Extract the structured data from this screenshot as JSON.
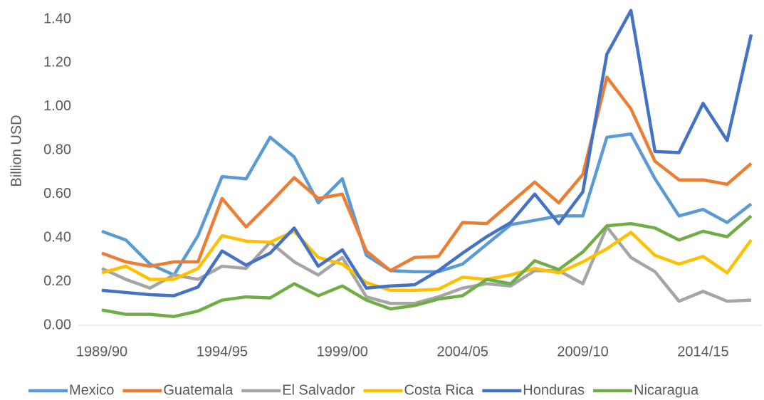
{
  "chart_data": {
    "type": "line",
    "y_label": "Billion USD",
    "categories": [
      "1989/90",
      null,
      null,
      null,
      null,
      "1994/95",
      null,
      null,
      null,
      null,
      "1999/00",
      null,
      null,
      null,
      null,
      "2004/05",
      null,
      null,
      null,
      null,
      "2009/10",
      null,
      null,
      null,
      null,
      "2014/15",
      null,
      null
    ],
    "series": [
      {
        "name": "Mexico",
        "color": "#5b9bd5",
        "values": [
          0.43,
          0.39,
          0.28,
          0.23,
          0.41,
          0.68,
          0.67,
          0.86,
          0.77,
          0.56,
          0.67,
          0.32,
          0.25,
          0.245,
          0.245,
          0.28,
          0.37,
          0.46,
          0.48,
          0.5,
          0.5,
          0.86,
          0.875,
          0.67,
          0.5,
          0.53,
          0.47,
          0.555
        ]
      },
      {
        "name": "Guatemala",
        "color": "#ed7d31",
        "values": [
          0.33,
          0.29,
          0.27,
          0.29,
          0.29,
          0.58,
          0.45,
          0.56,
          0.675,
          0.58,
          0.6,
          0.34,
          0.25,
          0.31,
          0.315,
          0.47,
          0.465,
          0.56,
          0.655,
          0.56,
          0.69,
          1.135,
          0.99,
          0.75,
          0.665,
          0.665,
          0.645,
          0.74
        ]
      },
      {
        "name": "El Salvador",
        "color": "#a5a5a5",
        "values": [
          0.26,
          0.21,
          0.17,
          0.23,
          0.21,
          0.27,
          0.26,
          0.38,
          0.29,
          0.23,
          0.31,
          0.13,
          0.1,
          0.1,
          0.13,
          0.17,
          0.19,
          0.18,
          0.25,
          0.25,
          0.19,
          0.45,
          0.31,
          0.245,
          0.11,
          0.155,
          0.11,
          0.115
        ]
      },
      {
        "name": "Costa Rica",
        "color": "#ffc000",
        "values": [
          0.24,
          0.27,
          0.21,
          0.21,
          0.26,
          0.41,
          0.385,
          0.38,
          0.43,
          0.31,
          0.28,
          0.195,
          0.16,
          0.16,
          0.165,
          0.22,
          0.21,
          0.23,
          0.26,
          0.24,
          0.29,
          0.35,
          0.425,
          0.32,
          0.28,
          0.315,
          0.24,
          0.39
        ]
      },
      {
        "name": "Honduras",
        "color": "#4472c4",
        "values": [
          0.16,
          0.15,
          0.14,
          0.135,
          0.175,
          0.34,
          0.275,
          0.33,
          0.445,
          0.27,
          0.345,
          0.17,
          0.18,
          0.185,
          0.25,
          0.33,
          0.405,
          0.47,
          0.6,
          0.465,
          0.61,
          1.24,
          1.44,
          0.795,
          0.79,
          1.015,
          0.845,
          1.33
        ]
      },
      {
        "name": "Nicaragua",
        "color": "#70ad47",
        "values": [
          0.07,
          0.05,
          0.05,
          0.04,
          0.065,
          0.115,
          0.13,
          0.125,
          0.19,
          0.135,
          0.18,
          0.115,
          0.075,
          0.09,
          0.12,
          0.135,
          0.21,
          0.19,
          0.295,
          0.255,
          0.335,
          0.455,
          0.465,
          0.445,
          0.39,
          0.43,
          0.405,
          0.5
        ]
      }
    ],
    "ylim": [
      0,
      1.4
    ],
    "yticks": [
      {
        "value": 0,
        "label": "0.00"
      },
      {
        "value": 0.2,
        "label": "0.20"
      },
      {
        "value": 0.4,
        "label": "0.40"
      },
      {
        "value": 0.6,
        "label": "0.60"
      },
      {
        "value": 0.8,
        "label": "0.80"
      },
      {
        "value": 1.0,
        "label": "1.00"
      },
      {
        "value": 1.2,
        "label": "1.20"
      },
      {
        "value": 1.4,
        "label": "1.40"
      }
    ],
    "legend": "bottom",
    "grid": false
  }
}
